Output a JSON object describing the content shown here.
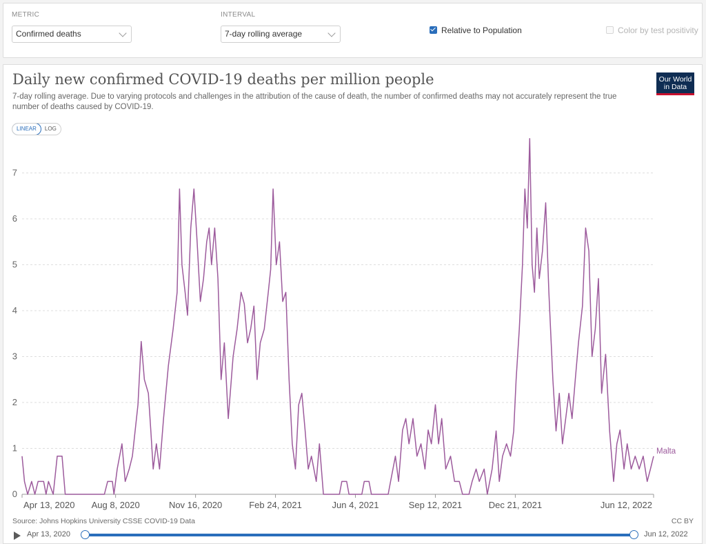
{
  "controls": {
    "metric_label": "METRIC",
    "metric_value": "Confirmed deaths",
    "interval_label": "INTERVAL",
    "interval_value": "7-day rolling average",
    "relative_label": "Relative to Population",
    "relative_checked": true,
    "color_label": "Color by test positivity",
    "color_checked": false
  },
  "header": {
    "title": "Daily new confirmed COVID-19 deaths per million people",
    "subtitle": "7-day rolling average. Due to varying protocols and challenges in the attribution of the cause of death, the number of confirmed deaths may not accurately represent the true number of deaths caused by COVID-19.",
    "logo_line1": "Our World",
    "logo_line2": "in Data"
  },
  "scale_toggle": {
    "linear": "LINEAR",
    "log": "LOG",
    "active": "linear"
  },
  "footer": {
    "source": "Source: Johns Hopkins University CSSE COVID-19 Data",
    "license": "CC BY"
  },
  "timeline": {
    "start_label": "Apr 13, 2020",
    "end_label": "Jun 12, 2022"
  },
  "colors": {
    "series": "#9c5a9c",
    "accent": "#2a6ebb",
    "logo_bg": "#0f2d53",
    "logo_bar": "#c8102e",
    "grid": "#dddddd"
  },
  "chart_data": {
    "type": "line",
    "title": "Daily new confirmed COVID-19 deaths per million people",
    "xlabel": "",
    "ylabel": "",
    "x_range": [
      "2020-04-13",
      "2022-06-12"
    ],
    "ylim": [
      0,
      7.7
    ],
    "y_ticks": [
      0,
      1,
      2,
      3,
      4,
      5,
      6,
      7
    ],
    "x_tick_labels": [
      "Apr 13, 2020",
      "Aug 8, 2020",
      "Nov 16, 2020",
      "Feb 24, 2021",
      "Jun 4, 2021",
      "Sep 12, 2021",
      "Dec 21, 2021",
      "Jun 12, 2022"
    ],
    "x_tick_dates": [
      "2020-04-13",
      "2020-08-08",
      "2020-11-16",
      "2021-02-24",
      "2021-06-04",
      "2021-09-12",
      "2021-12-21",
      "2022-06-12"
    ],
    "grid": true,
    "series": [
      {
        "name": "Malta",
        "points": [
          [
            "2020-04-13",
            0.83
          ],
          [
            "2020-04-16",
            0.28
          ],
          [
            "2020-04-20",
            0.0
          ],
          [
            "2020-04-25",
            0.28
          ],
          [
            "2020-04-29",
            0.0
          ],
          [
            "2020-05-03",
            0.28
          ],
          [
            "2020-05-10",
            0.28
          ],
          [
            "2020-05-13",
            0.0
          ],
          [
            "2020-05-16",
            0.28
          ],
          [
            "2020-05-22",
            0.0
          ],
          [
            "2020-05-27",
            0.83
          ],
          [
            "2020-06-02",
            0.83
          ],
          [
            "2020-06-06",
            0.0
          ],
          [
            "2020-07-25",
            0.0
          ],
          [
            "2020-07-29",
            0.28
          ],
          [
            "2020-08-04",
            0.28
          ],
          [
            "2020-08-06",
            0.0
          ],
          [
            "2020-08-10",
            0.55
          ],
          [
            "2020-08-16",
            1.1
          ],
          [
            "2020-08-20",
            0.28
          ],
          [
            "2020-08-25",
            0.55
          ],
          [
            "2020-08-29",
            0.83
          ],
          [
            "2020-09-05",
            1.95
          ],
          [
            "2020-09-09",
            3.33
          ],
          [
            "2020-09-13",
            2.5
          ],
          [
            "2020-09-18",
            2.2
          ],
          [
            "2020-09-21",
            1.4
          ],
          [
            "2020-09-24",
            0.55
          ],
          [
            "2020-09-28",
            1.1
          ],
          [
            "2020-10-02",
            0.55
          ],
          [
            "2020-10-07",
            1.65
          ],
          [
            "2020-10-13",
            2.8
          ],
          [
            "2020-10-19",
            3.6
          ],
          [
            "2020-10-24",
            4.4
          ],
          [
            "2020-10-27",
            6.65
          ],
          [
            "2020-10-30",
            5.0
          ],
          [
            "2020-11-03",
            4.4
          ],
          [
            "2020-11-06",
            3.9
          ],
          [
            "2020-11-10",
            5.8
          ],
          [
            "2020-11-14",
            6.65
          ],
          [
            "2020-11-18",
            5.5
          ],
          [
            "2020-11-22",
            4.2
          ],
          [
            "2020-11-26",
            4.7
          ],
          [
            "2020-11-30",
            5.5
          ],
          [
            "2020-12-03",
            5.8
          ],
          [
            "2020-12-06",
            5.0
          ],
          [
            "2020-12-10",
            5.8
          ],
          [
            "2020-12-14",
            4.7
          ],
          [
            "2020-12-18",
            2.5
          ],
          [
            "2020-12-22",
            3.3
          ],
          [
            "2020-12-27",
            1.65
          ],
          [
            "2021-01-02",
            3.0
          ],
          [
            "2021-01-07",
            3.6
          ],
          [
            "2021-01-12",
            4.4
          ],
          [
            "2021-01-16",
            4.15
          ],
          [
            "2021-01-20",
            3.3
          ],
          [
            "2021-01-24",
            3.6
          ],
          [
            "2021-01-28",
            4.1
          ],
          [
            "2021-02-01",
            2.5
          ],
          [
            "2021-02-05",
            3.3
          ],
          [
            "2021-02-10",
            3.6
          ],
          [
            "2021-02-15",
            4.4
          ],
          [
            "2021-02-18",
            4.9
          ],
          [
            "2021-02-21",
            6.65
          ],
          [
            "2021-02-25",
            5.0
          ],
          [
            "2021-03-01",
            5.5
          ],
          [
            "2021-03-05",
            4.2
          ],
          [
            "2021-03-09",
            4.4
          ],
          [
            "2021-03-13",
            2.5
          ],
          [
            "2021-03-17",
            1.1
          ],
          [
            "2021-03-21",
            0.55
          ],
          [
            "2021-03-25",
            1.95
          ],
          [
            "2021-03-29",
            2.2
          ],
          [
            "2021-04-02",
            1.4
          ],
          [
            "2021-04-06",
            0.55
          ],
          [
            "2021-04-10",
            0.83
          ],
          [
            "2021-04-16",
            0.28
          ],
          [
            "2021-04-20",
            1.1
          ],
          [
            "2021-04-25",
            0.0
          ],
          [
            "2021-05-15",
            0.0
          ],
          [
            "2021-05-18",
            0.28
          ],
          [
            "2021-05-24",
            0.28
          ],
          [
            "2021-05-27",
            0.0
          ],
          [
            "2021-06-12",
            0.0
          ],
          [
            "2021-06-15",
            0.28
          ],
          [
            "2021-06-21",
            0.28
          ],
          [
            "2021-06-24",
            0.0
          ],
          [
            "2021-07-15",
            0.0
          ],
          [
            "2021-07-18",
            0.28
          ],
          [
            "2021-07-24",
            0.83
          ],
          [
            "2021-07-28",
            0.28
          ],
          [
            "2021-08-02",
            1.4
          ],
          [
            "2021-08-06",
            1.65
          ],
          [
            "2021-08-10",
            1.1
          ],
          [
            "2021-08-15",
            1.65
          ],
          [
            "2021-08-20",
            0.83
          ],
          [
            "2021-08-25",
            1.1
          ],
          [
            "2021-08-30",
            0.55
          ],
          [
            "2021-09-03",
            1.4
          ],
          [
            "2021-09-07",
            1.1
          ],
          [
            "2021-09-12",
            1.95
          ],
          [
            "2021-09-16",
            1.1
          ],
          [
            "2021-09-20",
            1.65
          ],
          [
            "2021-09-25",
            0.55
          ],
          [
            "2021-10-01",
            0.83
          ],
          [
            "2021-10-06",
            0.28
          ],
          [
            "2021-10-12",
            0.28
          ],
          [
            "2021-10-16",
            0.0
          ],
          [
            "2021-10-24",
            0.0
          ],
          [
            "2021-10-28",
            0.28
          ],
          [
            "2021-11-02",
            0.55
          ],
          [
            "2021-11-06",
            0.28
          ],
          [
            "2021-11-12",
            0.55
          ],
          [
            "2021-11-16",
            0.0
          ],
          [
            "2021-11-22",
            0.55
          ],
          [
            "2021-11-27",
            1.38
          ],
          [
            "2021-12-01",
            0.28
          ],
          [
            "2021-12-05",
            0.83
          ],
          [
            "2021-12-10",
            1.1
          ],
          [
            "2021-12-15",
            0.83
          ],
          [
            "2021-12-19",
            1.38
          ],
          [
            "2021-12-22",
            2.5
          ],
          [
            "2021-12-26",
            3.6
          ],
          [
            "2021-12-30",
            5.0
          ],
          [
            "2022-01-02",
            6.65
          ],
          [
            "2022-01-05",
            5.8
          ],
          [
            "2022-01-08",
            7.75
          ],
          [
            "2022-01-11",
            5.0
          ],
          [
            "2022-01-14",
            4.4
          ],
          [
            "2022-01-17",
            5.8
          ],
          [
            "2022-01-20",
            4.7
          ],
          [
            "2022-01-24",
            5.3
          ],
          [
            "2022-01-28",
            6.35
          ],
          [
            "2022-02-01",
            4.4
          ],
          [
            "2022-02-06",
            2.5
          ],
          [
            "2022-02-10",
            1.38
          ],
          [
            "2022-02-14",
            2.2
          ],
          [
            "2022-02-18",
            1.1
          ],
          [
            "2022-02-22",
            1.65
          ],
          [
            "2022-02-26",
            2.2
          ],
          [
            "2022-03-02",
            1.65
          ],
          [
            "2022-03-06",
            2.5
          ],
          [
            "2022-03-10",
            3.3
          ],
          [
            "2022-03-15",
            4.1
          ],
          [
            "2022-03-19",
            5.8
          ],
          [
            "2022-03-23",
            5.3
          ],
          [
            "2022-03-27",
            3.0
          ],
          [
            "2022-03-31",
            3.6
          ],
          [
            "2022-04-04",
            4.7
          ],
          [
            "2022-04-08",
            2.2
          ],
          [
            "2022-04-13",
            3.05
          ],
          [
            "2022-04-18",
            1.38
          ],
          [
            "2022-04-23",
            0.28
          ],
          [
            "2022-04-27",
            1.1
          ],
          [
            "2022-05-01",
            1.4
          ],
          [
            "2022-05-06",
            0.55
          ],
          [
            "2022-05-10",
            1.1
          ],
          [
            "2022-05-15",
            0.55
          ],
          [
            "2022-05-20",
            0.83
          ],
          [
            "2022-05-25",
            0.55
          ],
          [
            "2022-05-30",
            0.83
          ],
          [
            "2022-06-04",
            0.28
          ],
          [
            "2022-06-08",
            0.55
          ],
          [
            "2022-06-12",
            0.83
          ]
        ]
      }
    ]
  }
}
